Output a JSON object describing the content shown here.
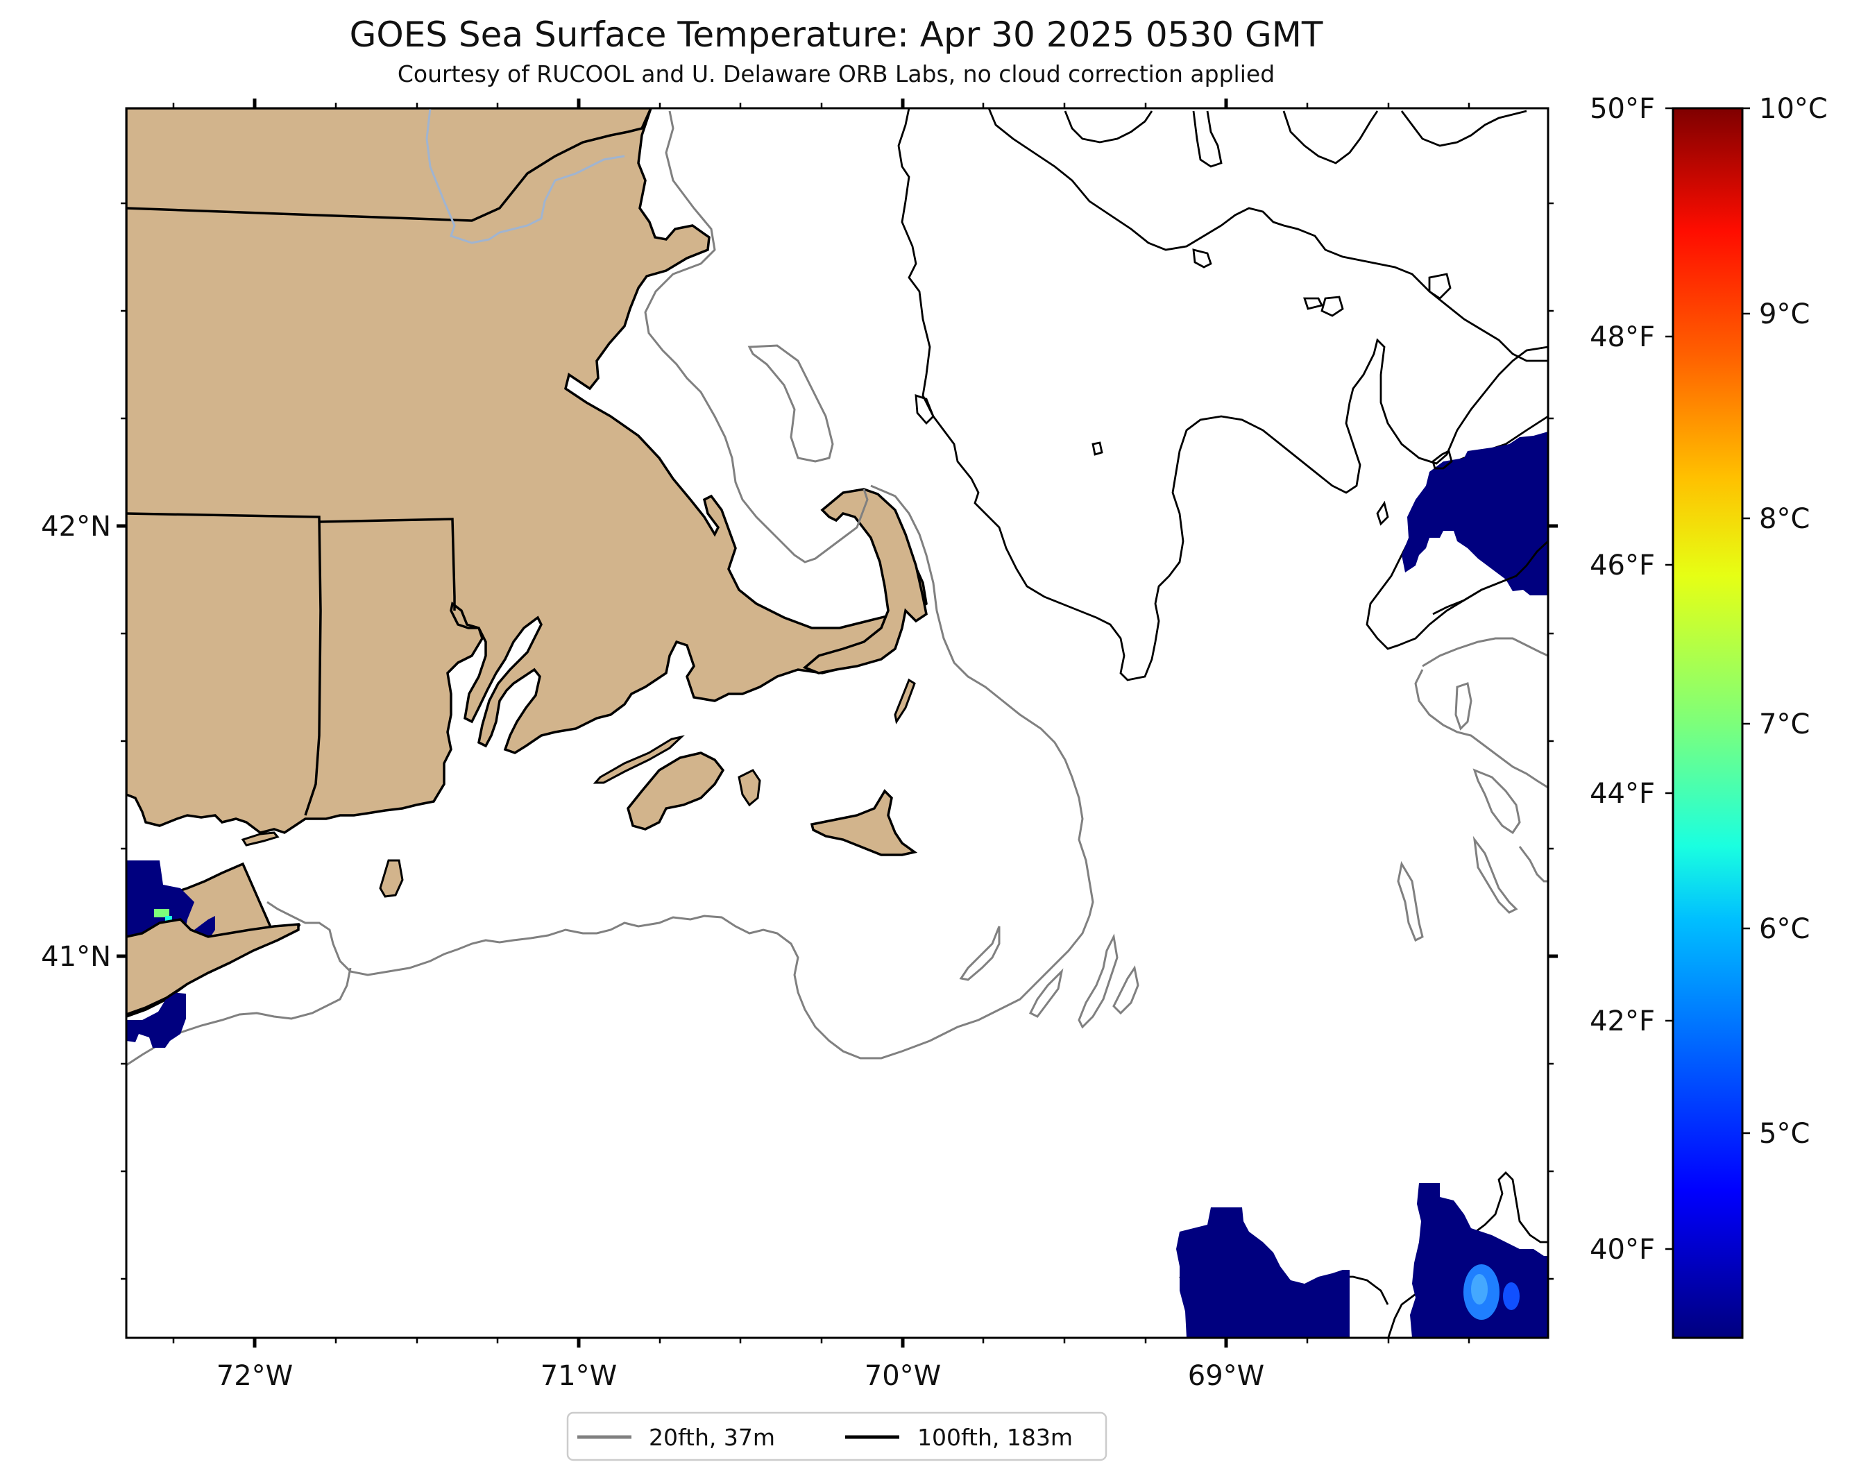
{
  "map": {
    "title": "GOES Sea Surface Temperature: Apr 30 2025 0530 GMT",
    "subtitle": "Courtesy of RUCOOL and U. Delaware ORB Labs, no cloud correction applied",
    "longitude_labels": [
      "72°W",
      "71°W",
      "70°W",
      "69°W"
    ],
    "latitude_labels": [
      "42°N",
      "41°N"
    ],
    "extent": {
      "lon_min": -72.4,
      "lon_max": -68.0,
      "lat_min": 40.1,
      "lat_max": 42.98
    },
    "land_color": "#d2b48c",
    "ocean_color": "#ffffff"
  },
  "colorbar": {
    "fahrenheit_labels": [
      "50°F",
      "48°F",
      "46°F",
      "44°F",
      "42°F",
      "40°F"
    ],
    "celsius_labels": [
      "10°C",
      "9°C",
      "8°C",
      "7°C",
      "6°C",
      "5°C"
    ],
    "colormap": "jet",
    "range_celsius": [
      4.0,
      10.0
    ]
  },
  "legend": {
    "items": [
      {
        "label": "20fth, 37m",
        "color": "#808080"
      },
      {
        "label": "100fth, 183m",
        "color": "#000000"
      }
    ]
  }
}
